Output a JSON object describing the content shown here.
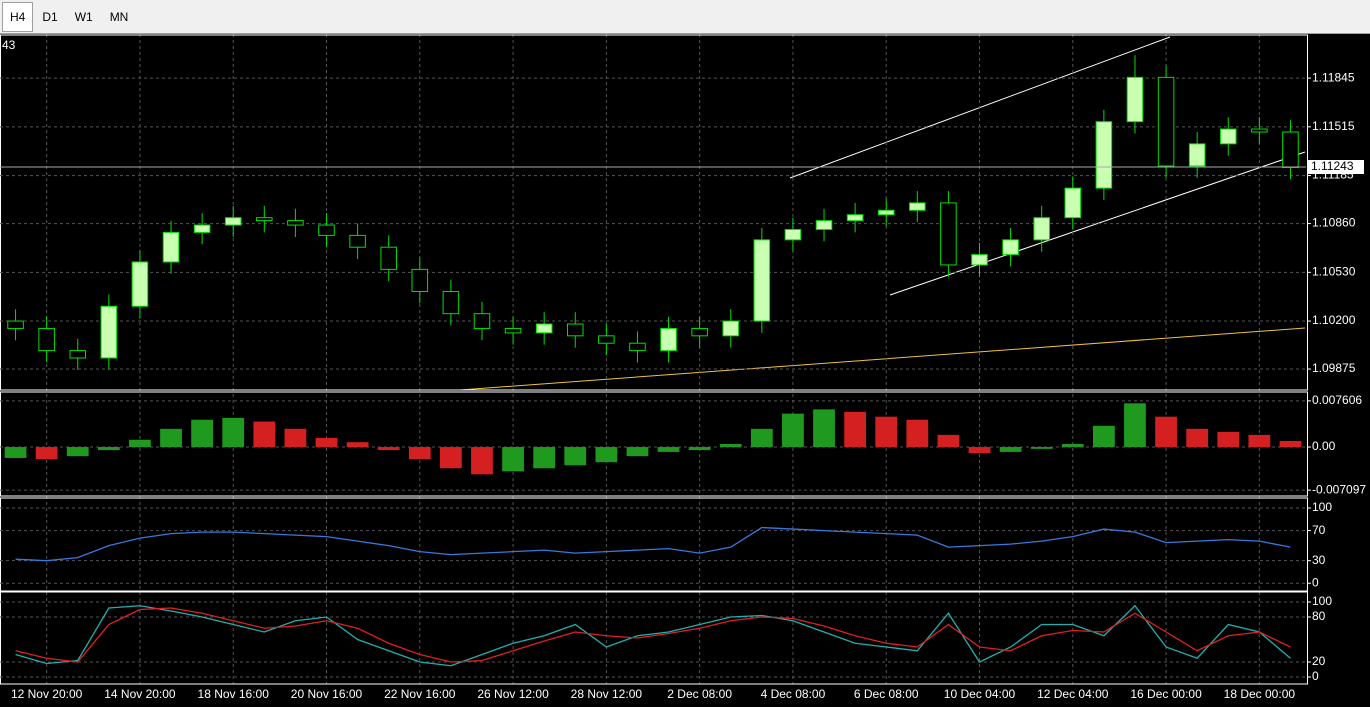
{
  "toolbar": {
    "tabs": [
      "H4",
      "D1",
      "W1",
      "MN"
    ],
    "active": 0
  },
  "chart_data": [
    {
      "type": "candlestick",
      "header_fragment": "43",
      "categories": [
        null,
        "12 Nov 20:00",
        null,
        null,
        "14 Nov 20:00",
        null,
        null,
        "18 Nov 16:00",
        null,
        null,
        "20 Nov 16:00",
        null,
        null,
        "22 Nov 16:00",
        null,
        null,
        "26 Nov 12:00",
        null,
        null,
        "28 Nov 12:00",
        null,
        null,
        "2 Dec 08:00",
        null,
        null,
        "4 Dec 08:00",
        null,
        null,
        "6 Dec 08:00",
        null,
        null,
        "10 Dec 04:00",
        null,
        null,
        "12 Dec 04:00",
        null,
        null,
        "16 Dec 00:00",
        null,
        null,
        "18 Dec 00:00",
        null
      ],
      "open": [
        1.102,
        1.1015,
        1.1,
        1.0995,
        1.103,
        1.106,
        1.108,
        1.1085,
        1.109,
        1.1088,
        1.1085,
        1.1078,
        1.107,
        1.1055,
        1.104,
        1.1025,
        1.1015,
        1.1012,
        1.1018,
        1.101,
        1.1005,
        1.1,
        1.1015,
        1.101,
        1.102,
        1.1075,
        1.1082,
        1.1088,
        1.1092,
        1.1095,
        1.11,
        1.1058,
        1.1065,
        1.1075,
        1.109,
        1.111,
        1.1155,
        1.1185,
        1.1125,
        1.114,
        1.115,
        1.1148
      ],
      "high": [
        1.1028,
        1.1023,
        1.1008,
        1.1038,
        1.1068,
        1.1088,
        1.1093,
        1.1098,
        1.1098,
        1.1096,
        1.1093,
        1.1086,
        1.1078,
        1.1063,
        1.1048,
        1.1033,
        1.1023,
        1.1026,
        1.1026,
        1.1018,
        1.1013,
        1.1023,
        1.1023,
        1.1028,
        1.1083,
        1.109,
        1.1096,
        1.11,
        1.1103,
        1.1108,
        1.1108,
        1.1073,
        1.1083,
        1.1098,
        1.1118,
        1.1163,
        1.12,
        1.1193,
        1.1148,
        1.1158,
        1.1158,
        1.1156
      ],
      "low": [
        1.1007,
        1.0992,
        1.0987,
        1.0987,
        1.1022,
        1.1052,
        1.1072,
        1.1077,
        1.108,
        1.1077,
        1.107,
        1.1062,
        1.1047,
        1.1032,
        1.1017,
        1.1007,
        1.1004,
        1.1004,
        1.1002,
        1.0997,
        1.0992,
        1.0992,
        1.1002,
        1.1002,
        1.1012,
        1.1067,
        1.1074,
        1.108,
        1.1084,
        1.1087,
        1.105,
        1.105,
        1.1057,
        1.1067,
        1.1082,
        1.1102,
        1.1147,
        1.1117,
        1.1117,
        1.1132,
        1.114,
        1.1116
      ],
      "close": [
        1.1015,
        1.1,
        1.0995,
        1.103,
        1.106,
        1.108,
        1.1085,
        1.109,
        1.1088,
        1.1085,
        1.1078,
        1.107,
        1.1055,
        1.104,
        1.1025,
        1.1015,
        1.1012,
        1.1018,
        1.101,
        1.1005,
        1.1,
        1.1015,
        1.101,
        1.102,
        1.1075,
        1.1082,
        1.1088,
        1.1092,
        1.1095,
        1.11,
        1.1058,
        1.1065,
        1.1075,
        1.109,
        1.111,
        1.1155,
        1.1185,
        1.1125,
        1.114,
        1.115,
        1.1148,
        1.1124
      ],
      "ylim": [
        1.0974,
        1.1213
      ],
      "yticks": [
        1.11845,
        1.11515,
        1.11185,
        {
          "value": 1.1086,
          "label": "1.10860"
        },
        {
          "value": 1.1053,
          "label": "1.10530"
        },
        {
          "value": 1.102,
          "label": "1.10200"
        },
        1.09875
      ],
      "current_price": 1.11243,
      "up_color": "#c8ffb0",
      "down_color": "#000000",
      "outline": "#00e000",
      "grid": true
    },
    {
      "type": "histogram",
      "values": [
        -0.0018,
        -0.002,
        -0.0015,
        -0.0005,
        0.0012,
        0.003,
        0.0045,
        0.0048,
        0.0042,
        0.003,
        0.0015,
        0.0008,
        -0.0005,
        -0.002,
        -0.0035,
        -0.0045,
        -0.004,
        -0.0035,
        -0.003,
        -0.0025,
        -0.0015,
        -0.0008,
        -0.0005,
        0.0005,
        0.003,
        0.0055,
        0.0062,
        0.0058,
        0.005,
        0.0045,
        0.002,
        -0.001,
        -0.0008,
        -0.0003,
        0.0005,
        0.0035,
        0.0072,
        0.005,
        0.003,
        0.0025,
        0.002,
        0.001
      ],
      "up_color": "#1f9a1f",
      "down_color": "#d42020",
      "ylim": [
        -0.0079,
        0.0089
      ],
      "yticks": [
        0.007606,
        {
          "value": 0,
          "label": "0.00"
        },
        -0.007097
      ]
    },
    {
      "type": "line",
      "series": [
        {
          "color": "#3a78e0",
          "values": [
            32,
            30,
            34,
            50,
            60,
            66,
            68,
            68,
            66,
            64,
            62,
            56,
            50,
            42,
            38,
            40,
            42,
            44,
            40,
            42,
            44,
            46,
            40,
            48,
            74,
            72,
            70,
            68,
            66,
            64,
            48,
            50,
            52,
            56,
            62,
            72,
            68,
            54,
            56,
            58,
            56,
            48
          ]
        }
      ],
      "ylim": [
        -9,
        112
      ],
      "yticks": [
        100,
        70,
        30,
        0
      ],
      "grid": true
    },
    {
      "type": "line",
      "series": [
        {
          "color": "#20b0b0",
          "values": [
            30,
            18,
            22,
            92,
            95,
            88,
            80,
            70,
            60,
            75,
            80,
            50,
            35,
            20,
            15,
            30,
            45,
            55,
            70,
            40,
            55,
            60,
            70,
            80,
            82,
            75,
            60,
            45,
            40,
            35,
            85,
            20,
            40,
            70,
            70,
            55,
            95,
            40,
            25,
            70,
            60,
            25
          ]
        },
        {
          "color": "#e02020",
          "values": [
            35,
            25,
            20,
            70,
            90,
            92,
            85,
            75,
            65,
            68,
            75,
            65,
            45,
            30,
            20,
            22,
            35,
            48,
            60,
            55,
            52,
            58,
            65,
            75,
            80,
            78,
            68,
            55,
            45,
            40,
            70,
            40,
            35,
            55,
            62,
            60,
            85,
            60,
            35,
            55,
            60,
            40
          ]
        }
      ],
      "ylim": [
        -8,
        112
      ],
      "yticks": [
        100,
        80,
        20,
        0
      ],
      "grid": true
    }
  ]
}
